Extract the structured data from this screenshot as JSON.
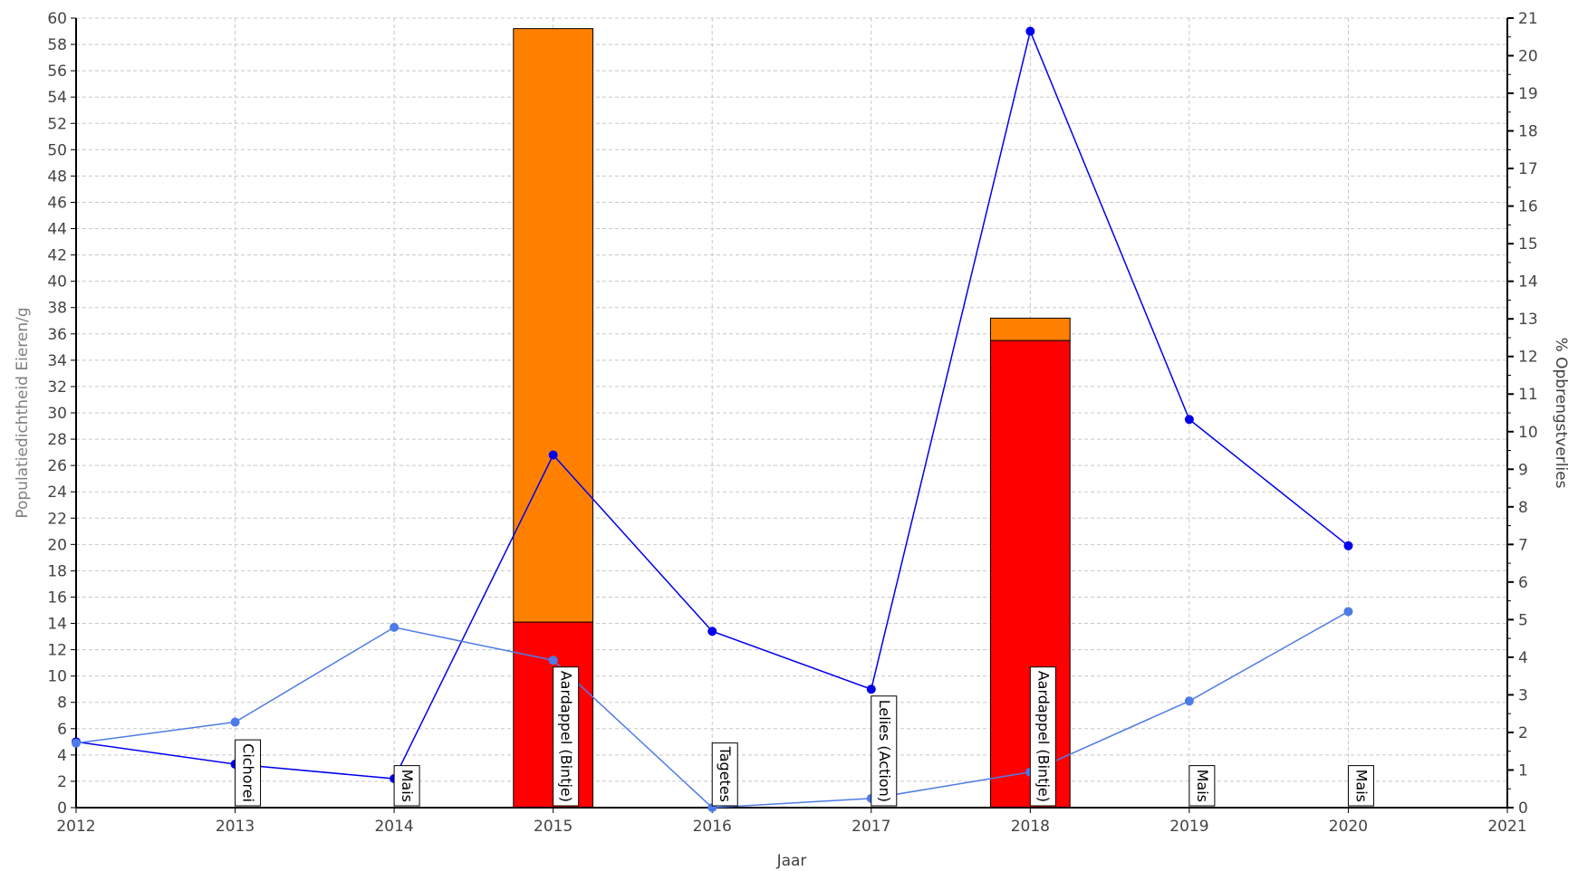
{
  "chart_data": {
    "type": "bar",
    "xlabel": "Jaar",
    "ylabel_left": "Populatiedichtheid Eieren/g",
    "ylabel_right": "% Opbrengstverlies",
    "xlim": [
      2012,
      2021
    ],
    "ylim_left": [
      0,
      60
    ],
    "ylim_right": [
      0,
      21
    ],
    "grid": true,
    "x_ticks": [
      "2012",
      "2013",
      "2014",
      "2015",
      "2016",
      "2017",
      "2018",
      "2019",
      "2020",
      "2021"
    ],
    "y_left_ticks": [
      "0",
      "2",
      "4",
      "6",
      "8",
      "10",
      "12",
      "14",
      "16",
      "18",
      "20",
      "22",
      "24",
      "26",
      "28",
      "30",
      "32",
      "34",
      "36",
      "38",
      "40",
      "42",
      "44",
      "46",
      "48",
      "50",
      "52",
      "54",
      "56",
      "58",
      "60"
    ],
    "y_right_ticks": [
      "0",
      "1",
      "2",
      "3",
      "4",
      "5",
      "6",
      "7",
      "8",
      "9",
      "10",
      "11",
      "12",
      "13",
      "14",
      "15",
      "16",
      "17",
      "18",
      "19",
      "20",
      "21"
    ],
    "bars": [
      {
        "x": 2015,
        "segments": [
          {
            "from": 0,
            "to": 14.1,
            "color": "#ff0000"
          },
          {
            "from": 14.1,
            "to": 59.2,
            "color": "#ff8000"
          }
        ]
      },
      {
        "x": 2018,
        "segments": [
          {
            "from": 0,
            "to": 35.5,
            "color": "#ff0000"
          },
          {
            "from": 35.5,
            "to": 37.2,
            "color": "#ff8000"
          }
        ]
      }
    ],
    "series": [
      {
        "axis": "left",
        "color": "#0000ee",
        "points": [
          [
            2012,
            5.0
          ],
          [
            2013,
            3.3
          ],
          [
            2014,
            2.2
          ],
          [
            2015,
            26.8
          ],
          [
            2016,
            13.4
          ],
          [
            2017,
            9.0
          ],
          [
            2018,
            59.0
          ],
          [
            2019,
            29.5
          ],
          [
            2020,
            19.9
          ]
        ]
      },
      {
        "axis": "left",
        "color": "#4f7be8",
        "points": [
          [
            2012,
            4.9
          ],
          [
            2013,
            6.5
          ],
          [
            2014,
            13.7
          ],
          [
            2015,
            11.2
          ],
          [
            2016,
            0.0
          ],
          [
            2017,
            0.7
          ],
          [
            2018,
            2.7
          ],
          [
            2019,
            8.1
          ],
          [
            2020,
            14.9
          ]
        ]
      }
    ],
    "crop_labels": [
      {
        "x": 2013,
        "text": "Cichorei"
      },
      {
        "x": 2014,
        "text": "Mais"
      },
      {
        "x": 2015,
        "text": "Aardappel (Bintje)"
      },
      {
        "x": 2016,
        "text": "Tagetes"
      },
      {
        "x": 2017,
        "text": "Lelies (Action)"
      },
      {
        "x": 2018,
        "text": "Aardappel (Bintje)"
      },
      {
        "x": 2019,
        "text": "Mais"
      },
      {
        "x": 2020,
        "text": "Mais"
      }
    ]
  }
}
